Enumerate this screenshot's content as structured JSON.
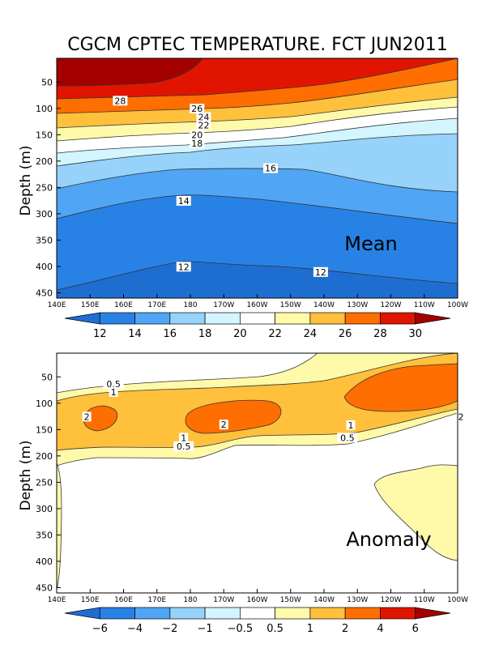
{
  "title": "CGCM CPTEC TEMPERATURE. FCT JUN2011",
  "chart_data": [
    {
      "type": "heatmap",
      "subtype": "filled-contour",
      "panel_label": "Mean",
      "ylabel": "Depth (m)",
      "xlabel": "",
      "x_ticks": [
        "140E",
        "150E",
        "160E",
        "170E",
        "180",
        "170W",
        "160W",
        "150W",
        "140W",
        "130W",
        "120W",
        "110W",
        "100W"
      ],
      "y_ticks": [
        50,
        100,
        150,
        200,
        250,
        300,
        350,
        400,
        450
      ],
      "ylim": [
        460,
        5
      ],
      "colorbar_levels": [
        12,
        14,
        16,
        18,
        20,
        22,
        24,
        26,
        28,
        30
      ],
      "colorbar_labels": [
        "12",
        "14",
        "16",
        "18",
        "20",
        "22",
        "24",
        "26",
        "28",
        "30"
      ],
      "colors": [
        "#1e6ed2",
        "#2882e6",
        "#50a5f5",
        "#96d2fa",
        "#d2f5ff",
        "#ffffff",
        "#fffaaa",
        "#ffc03c",
        "#ff6e00",
        "#e11400",
        "#a50000"
      ],
      "contour_labels": [
        {
          "text": "28",
          "lon": 159,
          "depth": 87
        },
        {
          "text": "26",
          "lon": 182,
          "depth": 102
        },
        {
          "text": "24",
          "lon": 184,
          "depth": 118
        },
        {
          "text": "22",
          "lon": 184,
          "depth": 133
        },
        {
          "text": "20",
          "lon": 182,
          "depth": 152
        },
        {
          "text": "18",
          "lon": 182,
          "depth": 168
        },
        {
          "text": "16",
          "lon": 204,
          "depth": 215
        },
        {
          "text": "14",
          "lon": 178,
          "depth": 277
        },
        {
          "text": "12",
          "lon": 178,
          "depth": 402
        },
        {
          "text": "12",
          "lon": 219,
          "depth": 412
        }
      ]
    },
    {
      "type": "heatmap",
      "subtype": "filled-contour",
      "panel_label": "Anomaly",
      "ylabel": "Depth (m)",
      "xlabel": "",
      "x_ticks": [
        "140E",
        "150E",
        "160E",
        "170E",
        "180",
        "170W",
        "160W",
        "150W",
        "140W",
        "130W",
        "120W",
        "110W",
        "100W"
      ],
      "y_ticks": [
        50,
        100,
        150,
        200,
        250,
        300,
        350,
        400,
        450
      ],
      "ylim": [
        460,
        5
      ],
      "colorbar_levels": [
        -6,
        -4,
        -2,
        -1,
        -0.5,
        0.5,
        1,
        2,
        4,
        6
      ],
      "colorbar_labels": [
        "−6",
        "−4",
        "−2",
        "−1",
        "−0.5",
        "0.5",
        "1",
        "2",
        "4",
        "6"
      ],
      "colors": [
        "#1e6ed2",
        "#2882e6",
        "#50a5f5",
        "#96d2fa",
        "#d2f5ff",
        "#ffffff",
        "#fffaaa",
        "#ffc03c",
        "#ff6e00",
        "#e11400",
        "#a50000"
      ],
      "contour_labels": [
        {
          "text": "0.5",
          "lon": 157,
          "depth": 65
        },
        {
          "text": "1",
          "lon": 157,
          "depth": 80
        },
        {
          "text": "2",
          "lon": 149,
          "depth": 127
        },
        {
          "text": "2",
          "lon": 190,
          "depth": 142
        },
        {
          "text": "2",
          "lon": 261,
          "depth": 127
        },
        {
          "text": "1",
          "lon": 178,
          "depth": 167
        },
        {
          "text": "0.5",
          "lon": 178,
          "depth": 183
        },
        {
          "text": "1",
          "lon": 228,
          "depth": 143
        },
        {
          "text": "0.5",
          "lon": 227,
          "depth": 167
        }
      ]
    }
  ]
}
